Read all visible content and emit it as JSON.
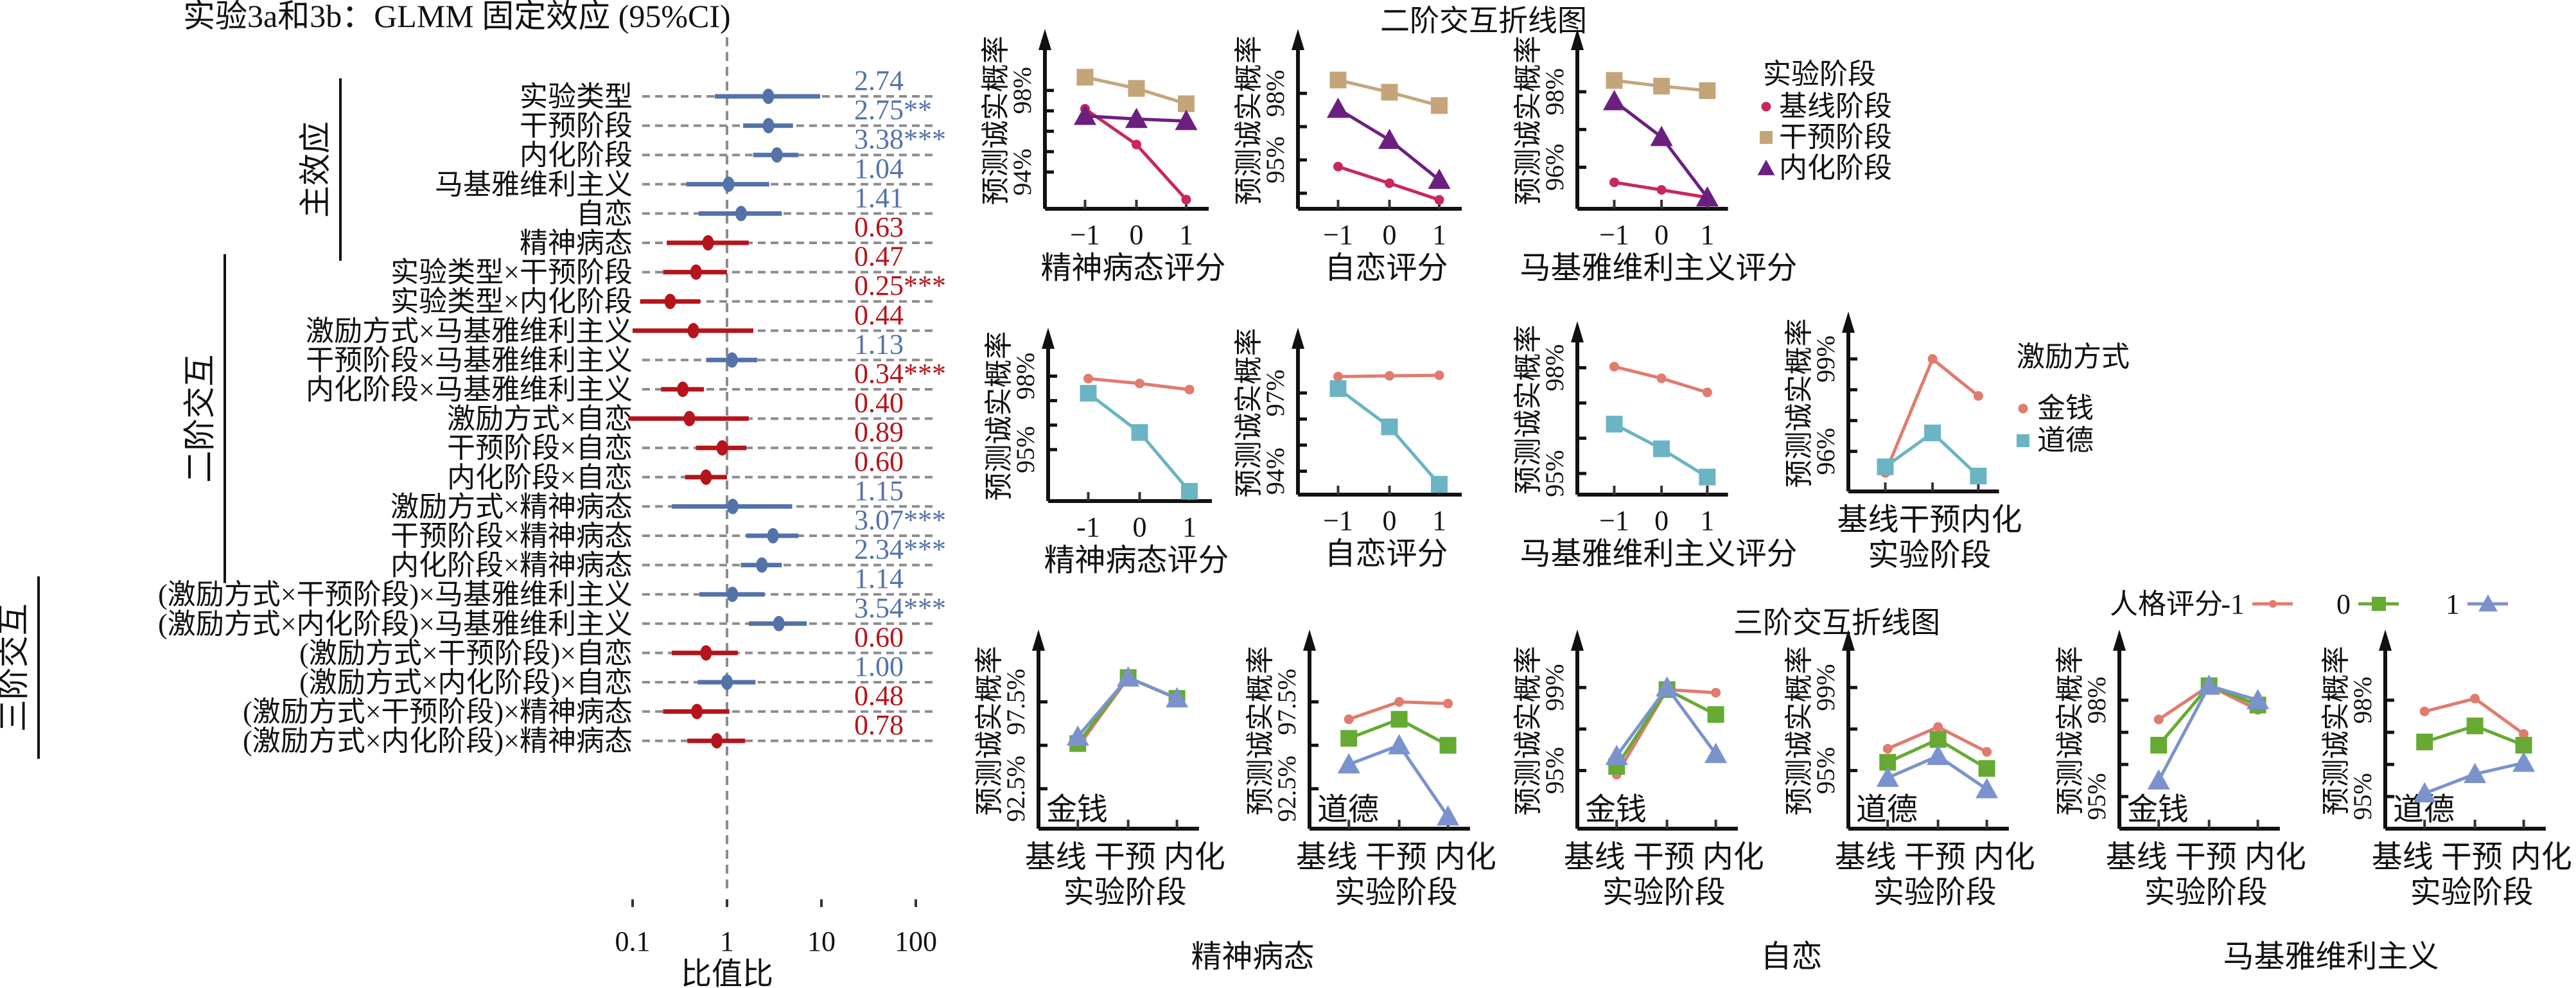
{
  "figure_title": "实验3a和3b：GLMM 固定效应 (95%CI)",
  "colors": {
    "positive": "#5372A8",
    "negative": "#B5141C",
    "grid": "#8C8C8C",
    "stage_baseline": "#C8285A",
    "stage_intervention": "#C4A57A",
    "stage_internalization": "#6B2080",
    "money": "#E07B6E",
    "moral": "#6AB4C4",
    "score_neg1": "#E07B6E",
    "score_0": "#66AA33",
    "score_1": "#7B93CC"
  },
  "chart_data": [
    {
      "id": "forest",
      "type": "forest",
      "title": "实验3a和3b：GLMM 固定效应 (95%CI)",
      "xlabel": "比值比",
      "xscale": "log",
      "xlim": [
        0.08,
        130
      ],
      "xticks": [
        0.1,
        1,
        10,
        100
      ],
      "xtick_labels": [
        "0.1",
        "1",
        "10",
        "100"
      ],
      "reference_line": 1,
      "groups": [
        {
          "label": "主效应",
          "rows": [
            0,
            5
          ]
        },
        {
          "label": "二阶交互",
          "rows": [
            6,
            16
          ]
        },
        {
          "label": "三阶交互",
          "rows": [
            17,
            22
          ]
        }
      ],
      "rows": [
        {
          "label": "实验类型",
          "or": 2.74,
          "sig": "",
          "ci": [
            0.74,
            9.7
          ]
        },
        {
          "label": "干预阶段",
          "or": 2.75,
          "sig": "**",
          "ci": [
            1.48,
            5.0
          ]
        },
        {
          "label": "内化阶段",
          "or": 3.38,
          "sig": "***",
          "ci": [
            1.9,
            5.7
          ]
        },
        {
          "label": "马基雅维利主义",
          "or": 1.04,
          "sig": "",
          "ci": [
            0.37,
            2.8
          ]
        },
        {
          "label": "自恋",
          "or": 1.41,
          "sig": "",
          "ci": [
            0.5,
            3.8
          ]
        },
        {
          "label": "精神病态",
          "or": 0.63,
          "sig": "",
          "ci": [
            0.23,
            1.7
          ]
        },
        {
          "label": "实验类型×干预阶段",
          "or": 0.47,
          "sig": "",
          "ci": [
            0.21,
            1.0
          ]
        },
        {
          "label": "实验类型×内化阶段",
          "or": 0.25,
          "sig": "***",
          "ci": [
            0.12,
            0.52
          ]
        },
        {
          "label": "激励方式×马基雅维利主义",
          "or": 0.44,
          "sig": "",
          "ci": [
            0.1,
            1.9
          ]
        },
        {
          "label": "干预阶段×马基雅维利主义",
          "or": 1.13,
          "sig": "",
          "ci": [
            0.6,
            2.1
          ]
        },
        {
          "label": "内化阶段×马基雅维利主义",
          "or": 0.34,
          "sig": "***",
          "ci": [
            0.2,
            0.57
          ]
        },
        {
          "label": "激励方式×自恋",
          "or": 0.4,
          "sig": "",
          "ci": [
            0.09,
            1.7
          ]
        },
        {
          "label": "干预阶段×自恋",
          "or": 0.89,
          "sig": "",
          "ci": [
            0.47,
            1.6
          ]
        },
        {
          "label": "内化阶段×自恋",
          "or": 0.6,
          "sig": "",
          "ci": [
            0.36,
            1.0
          ]
        },
        {
          "label": "激励方式×精神病态",
          "or": 1.15,
          "sig": "",
          "ci": [
            0.26,
            4.9
          ]
        },
        {
          "label": "干预阶段×精神病态",
          "or": 3.07,
          "sig": "***",
          "ci": [
            1.6,
            5.7
          ]
        },
        {
          "label": "内化阶段×精神病态",
          "or": 2.34,
          "sig": "***",
          "ci": [
            1.4,
            3.8
          ]
        },
        {
          "label": "(激励方式×干预阶段)×马基雅维利主义",
          "or": 1.14,
          "sig": "",
          "ci": [
            0.51,
            2.5
          ]
        },
        {
          "label": "(激励方式×内化阶段)×马基雅维利主义",
          "or": 3.54,
          "sig": "***",
          "ci": [
            1.7,
            7.0
          ]
        },
        {
          "label": "(激励方式×干预阶段)×自恋",
          "or": 0.6,
          "sig": "",
          "ci": [
            0.26,
            1.3
          ]
        },
        {
          "label": "(激励方式×内化阶段)×自恋",
          "or": 1.0,
          "sig": "",
          "ci": [
            0.49,
            2.0
          ]
        },
        {
          "label": "(激励方式×干预阶段)×精神病态",
          "or": 0.48,
          "sig": "",
          "ci": [
            0.21,
            1.06
          ]
        },
        {
          "label": "(激励方式×内化阶段)×精神病态",
          "or": 0.78,
          "sig": "",
          "ci": [
            0.38,
            1.55
          ]
        }
      ]
    },
    {
      "id": "two-way",
      "type": "line",
      "title": "二阶交互折线图",
      "ylabel": "预测诚实概率",
      "legends": [
        {
          "title": "实验阶段",
          "entries": [
            {
              "name": "基线阶段",
              "color_key": "stage_baseline",
              "marker": "dot"
            },
            {
              "name": "干预阶段",
              "color_key": "stage_intervention",
              "marker": "square"
            },
            {
              "name": "内化阶段",
              "color_key": "stage_internalization",
              "marker": "triangle"
            }
          ]
        },
        {
          "title": "激励方式",
          "entries": [
            {
              "name": "金钱",
              "color_key": "money",
              "marker": "dot"
            },
            {
              "name": "道德",
              "color_key": "moral",
              "marker": "square"
            }
          ]
        }
      ],
      "panels": [
        {
          "xlabel": "精神病态评分",
          "x": [
            "−1",
            "0",
            "1"
          ],
          "ylim": [
            92.2,
            99.6
          ],
          "yticks": [
            94,
            95,
            96,
            97,
            98
          ],
          "ytick_labels": {
            "94": "94%",
            "98": "98%"
          },
          "legend": 0,
          "series": [
            {
              "name": "基线阶段",
              "values": [
                97.1,
                95.35,
                92.65
              ]
            },
            {
              "name": "干预阶段",
              "values": [
                98.65,
                98.1,
                97.35
              ]
            },
            {
              "name": "内化阶段",
              "values": [
                96.75,
                96.6,
                96.5
              ]
            }
          ]
        },
        {
          "xlabel": "自恋评分",
          "x": [
            "−1",
            "0",
            "1"
          ],
          "ylim": [
            92.8,
            99.6
          ],
          "yticks": [
            93.5,
            95,
            96.5,
            98
          ],
          "ytick_labels": {
            "95": "95%",
            "98": "98%"
          },
          "legend": 0,
          "series": [
            {
              "name": "基线阶段",
              "values": [
                94.7,
                93.95,
                93.2
              ]
            },
            {
              "name": "干预阶段",
              "values": [
                98.6,
                98.05,
                97.45
              ]
            },
            {
              "name": "内化阶段",
              "values": [
                97.3,
                95.9,
                94.1
              ]
            }
          ]
        },
        {
          "xlabel": "马基雅维利主义评分",
          "x": [
            "−1",
            "0",
            "1"
          ],
          "ylim": [
            94.9,
            98.9
          ],
          "yticks": [
            96,
            97,
            98
          ],
          "ytick_labels": {
            "96": "96%",
            "98": "98%"
          },
          "legend": 0,
          "series": [
            {
              "name": "基线阶段",
              "values": [
                95.6,
                95.4,
                95.2
              ]
            },
            {
              "name": "干预阶段",
              "values": [
                98.3,
                98.15,
                98.03
              ]
            },
            {
              "name": "内化阶段",
              "values": [
                97.75,
                96.8,
                95.2
              ]
            }
          ]
        },
        {
          "xlabel": "精神病态评分",
          "x": [
            "-1",
            "0",
            "1"
          ],
          "ylim": [
            92.9,
            98.8
          ],
          "yticks": [
            95,
            96,
            97,
            98
          ],
          "ytick_labels": {
            "95": "95%",
            "98": "98%"
          },
          "legend": 1,
          "series": [
            {
              "name": "金钱",
              "values": [
                97.9,
                97.7,
                97.45
              ]
            },
            {
              "name": "道德",
              "values": [
                97.3,
                95.7,
                93.3
              ]
            }
          ]
        },
        {
          "xlabel": "自恋评分",
          "x": [
            "−1",
            "0",
            "1"
          ],
          "ylim": [
            93.1,
            98.4
          ],
          "yticks": [
            94,
            95,
            96,
            97
          ],
          "ytick_labels": {
            "94": "94%",
            "97": "97%"
          },
          "legend": 1,
          "series": [
            {
              "name": "金钱",
              "values": [
                97.63,
                97.66,
                97.68
              ]
            },
            {
              "name": "道德",
              "values": [
                97.17,
                95.7,
                93.5
              ]
            }
          ]
        },
        {
          "xlabel": "马基雅维利主义评分",
          "x": [
            "−1",
            "0",
            "1"
          ],
          "ylim": [
            94.4,
            98.5
          ],
          "yticks": [
            95,
            96,
            97,
            98
          ],
          "ytick_labels": {
            "95": "95%",
            "98": "98%"
          },
          "legend": 1,
          "series": [
            {
              "name": "金钱",
              "values": [
                98.03,
                97.7,
                97.3
              ]
            },
            {
              "name": "道德",
              "values": [
                96.4,
                95.7,
                94.9
              ]
            }
          ]
        },
        {
          "xlabel": "实验阶段",
          "x": [
            "基线",
            "干预",
            "内化"
          ],
          "ylim": [
            94.7,
            99.6
          ],
          "yticks": [
            96,
            97,
            98,
            99
          ],
          "ytick_labels": {
            "96": "96%",
            "99": "99%"
          },
          "legend": 1,
          "legend_shown": true,
          "series": [
            {
              "name": "金钱",
              "values": [
                95.3,
                99.0,
                97.8
              ]
            },
            {
              "name": "道德",
              "values": [
                95.5,
                96.6,
                95.2
              ]
            }
          ]
        }
      ]
    },
    {
      "id": "three-way",
      "type": "line",
      "title": "三阶交互折线图",
      "ylabel": "预测诚实概率",
      "xlabel": "实验阶段",
      "x": [
        "基线",
        "干预",
        "内化"
      ],
      "legend": {
        "title": "人格评分",
        "entries": [
          {
            "name": "-1",
            "color_key": "score_neg1",
            "marker": "dot"
          },
          {
            "name": "0",
            "color_key": "score_0",
            "marker": "square"
          },
          {
            "name": "1",
            "color_key": "score_1",
            "marker": "triangle"
          }
        ]
      },
      "groups": [
        {
          "label": "精神病态",
          "panels": [
            0,
            1
          ]
        },
        {
          "label": "自恋",
          "panels": [
            2,
            3
          ]
        },
        {
          "label": "马基雅维利主义",
          "panels": [
            4,
            5
          ]
        }
      ],
      "panels": [
        {
          "tag": "金钱",
          "ylim": [
            90.2,
            100.0
          ],
          "yticks": [
            92.5,
            95,
            97.5
          ],
          "ytick_labels": {
            "92.5": "92.5%",
            "97.5": "97.5%"
          },
          "series": [
            {
              "name": "-1",
              "values": [
                94.9,
                98.9,
                97.7
              ]
            },
            {
              "name": "0",
              "values": [
                95.1,
                98.9,
                97.7
              ]
            },
            {
              "name": "1",
              "values": [
                95.5,
                98.9,
                97.7
              ]
            }
          ]
        },
        {
          "tag": "道德",
          "ylim": [
            90.2,
            100.0
          ],
          "yticks": [
            92.5,
            95,
            97.5
          ],
          "ytick_labels": {
            "92.5": "92.5%",
            "97.5": "97.5%"
          },
          "series": [
            {
              "name": "-1",
              "values": [
                96.5,
                97.5,
                97.4
              ]
            },
            {
              "name": "0",
              "values": [
                95.4,
                96.5,
                95.0
              ]
            },
            {
              "name": "1",
              "values": [
                93.9,
                95.0,
                90.9
              ]
            }
          ]
        },
        {
          "tag": "金钱",
          "ylim": [
            92.2,
            100.4
          ],
          "yticks": [
            95,
            97,
            99
          ],
          "ytick_labels": {
            "95": "95%",
            "99": "99%"
          },
          "series": [
            {
              "name": "-1",
              "values": [
                94.8,
                98.9,
                98.75
              ]
            },
            {
              "name": "0",
              "values": [
                95.2,
                98.9,
                97.7
              ]
            },
            {
              "name": "1",
              "values": [
                95.7,
                99.0,
                95.8
              ]
            }
          ]
        },
        {
          "tag": "道德",
          "ylim": [
            92.2,
            100.4
          ],
          "yticks": [
            95,
            97,
            99
          ],
          "ytick_labels": {
            "95": "95%",
            "99": "99%"
          },
          "series": [
            {
              "name": "-1",
              "values": [
                96.05,
                97.1,
                95.9
              ]
            },
            {
              "name": "0",
              "values": [
                95.4,
                96.5,
                95.1
              ]
            },
            {
              "name": "1",
              "values": [
                94.65,
                95.7,
                94.1
              ]
            }
          ]
        },
        {
          "tag": "金钱",
          "ylim": [
            94.0,
            99.3
          ],
          "yticks": [
            95,
            96,
            97,
            98
          ],
          "ytick_labels": {
            "95": "95%",
            "98": "98%"
          },
          "series": [
            {
              "name": "-1",
              "values": [
                97.4,
                98.45,
                97.7
              ]
            },
            {
              "name": "0",
              "values": [
                96.6,
                98.45,
                97.85
              ]
            },
            {
              "name": "1",
              "values": [
                95.5,
                98.45,
                98.0
              ]
            }
          ]
        },
        {
          "tag": "道德",
          "ylim": [
            94.0,
            99.3
          ],
          "yticks": [
            95,
            96,
            97,
            98
          ],
          "ytick_labels": {
            "95": "95%",
            "98": "98%"
          },
          "series": [
            {
              "name": "-1",
              "values": [
                97.65,
                98.05,
                96.95
              ]
            },
            {
              "name": "0",
              "values": [
                96.7,
                97.2,
                96.6
              ]
            },
            {
              "name": "1",
              "values": [
                95.1,
                95.7,
                96.05
              ]
            }
          ]
        }
      ]
    }
  ]
}
